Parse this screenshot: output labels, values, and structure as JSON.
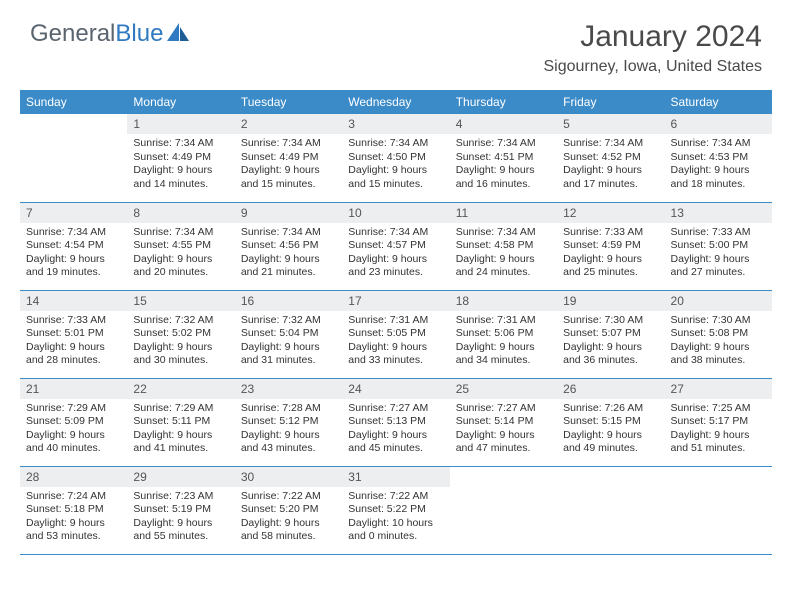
{
  "logo": {
    "text_a": "General",
    "text_b": "Blue"
  },
  "title": "January 2024",
  "location": "Sigourney, Iowa, United States",
  "colors": {
    "header_bg": "#3b8bc9",
    "header_text": "#ffffff",
    "daynum_bg": "#eceef0",
    "border": "#3b8bc9",
    "logo_gray": "#5a6570",
    "logo_blue": "#2f7ac0"
  },
  "weekdays": [
    "Sunday",
    "Monday",
    "Tuesday",
    "Wednesday",
    "Thursday",
    "Friday",
    "Saturday"
  ],
  "weeks": [
    [
      null,
      {
        "n": "1",
        "sr": "7:34 AM",
        "ss": "4:49 PM",
        "dl": "9 hours and 14 minutes."
      },
      {
        "n": "2",
        "sr": "7:34 AM",
        "ss": "4:49 PM",
        "dl": "9 hours and 15 minutes."
      },
      {
        "n": "3",
        "sr": "7:34 AM",
        "ss": "4:50 PM",
        "dl": "9 hours and 15 minutes."
      },
      {
        "n": "4",
        "sr": "7:34 AM",
        "ss": "4:51 PM",
        "dl": "9 hours and 16 minutes."
      },
      {
        "n": "5",
        "sr": "7:34 AM",
        "ss": "4:52 PM",
        "dl": "9 hours and 17 minutes."
      },
      {
        "n": "6",
        "sr": "7:34 AM",
        "ss": "4:53 PM",
        "dl": "9 hours and 18 minutes."
      }
    ],
    [
      {
        "n": "7",
        "sr": "7:34 AM",
        "ss": "4:54 PM",
        "dl": "9 hours and 19 minutes."
      },
      {
        "n": "8",
        "sr": "7:34 AM",
        "ss": "4:55 PM",
        "dl": "9 hours and 20 minutes."
      },
      {
        "n": "9",
        "sr": "7:34 AM",
        "ss": "4:56 PM",
        "dl": "9 hours and 21 minutes."
      },
      {
        "n": "10",
        "sr": "7:34 AM",
        "ss": "4:57 PM",
        "dl": "9 hours and 23 minutes."
      },
      {
        "n": "11",
        "sr": "7:34 AM",
        "ss": "4:58 PM",
        "dl": "9 hours and 24 minutes."
      },
      {
        "n": "12",
        "sr": "7:33 AM",
        "ss": "4:59 PM",
        "dl": "9 hours and 25 minutes."
      },
      {
        "n": "13",
        "sr": "7:33 AM",
        "ss": "5:00 PM",
        "dl": "9 hours and 27 minutes."
      }
    ],
    [
      {
        "n": "14",
        "sr": "7:33 AM",
        "ss": "5:01 PM",
        "dl": "9 hours and 28 minutes."
      },
      {
        "n": "15",
        "sr": "7:32 AM",
        "ss": "5:02 PM",
        "dl": "9 hours and 30 minutes."
      },
      {
        "n": "16",
        "sr": "7:32 AM",
        "ss": "5:04 PM",
        "dl": "9 hours and 31 minutes."
      },
      {
        "n": "17",
        "sr": "7:31 AM",
        "ss": "5:05 PM",
        "dl": "9 hours and 33 minutes."
      },
      {
        "n": "18",
        "sr": "7:31 AM",
        "ss": "5:06 PM",
        "dl": "9 hours and 34 minutes."
      },
      {
        "n": "19",
        "sr": "7:30 AM",
        "ss": "5:07 PM",
        "dl": "9 hours and 36 minutes."
      },
      {
        "n": "20",
        "sr": "7:30 AM",
        "ss": "5:08 PM",
        "dl": "9 hours and 38 minutes."
      }
    ],
    [
      {
        "n": "21",
        "sr": "7:29 AM",
        "ss": "5:09 PM",
        "dl": "9 hours and 40 minutes."
      },
      {
        "n": "22",
        "sr": "7:29 AM",
        "ss": "5:11 PM",
        "dl": "9 hours and 41 minutes."
      },
      {
        "n": "23",
        "sr": "7:28 AM",
        "ss": "5:12 PM",
        "dl": "9 hours and 43 minutes."
      },
      {
        "n": "24",
        "sr": "7:27 AM",
        "ss": "5:13 PM",
        "dl": "9 hours and 45 minutes."
      },
      {
        "n": "25",
        "sr": "7:27 AM",
        "ss": "5:14 PM",
        "dl": "9 hours and 47 minutes."
      },
      {
        "n": "26",
        "sr": "7:26 AM",
        "ss": "5:15 PM",
        "dl": "9 hours and 49 minutes."
      },
      {
        "n": "27",
        "sr": "7:25 AM",
        "ss": "5:17 PM",
        "dl": "9 hours and 51 minutes."
      }
    ],
    [
      {
        "n": "28",
        "sr": "7:24 AM",
        "ss": "5:18 PM",
        "dl": "9 hours and 53 minutes."
      },
      {
        "n": "29",
        "sr": "7:23 AM",
        "ss": "5:19 PM",
        "dl": "9 hours and 55 minutes."
      },
      {
        "n": "30",
        "sr": "7:22 AM",
        "ss": "5:20 PM",
        "dl": "9 hours and 58 minutes."
      },
      {
        "n": "31",
        "sr": "7:22 AM",
        "ss": "5:22 PM",
        "dl": "10 hours and 0 minutes."
      },
      null,
      null,
      null
    ]
  ],
  "labels": {
    "sunrise": "Sunrise:",
    "sunset": "Sunset:",
    "daylight": "Daylight:"
  }
}
